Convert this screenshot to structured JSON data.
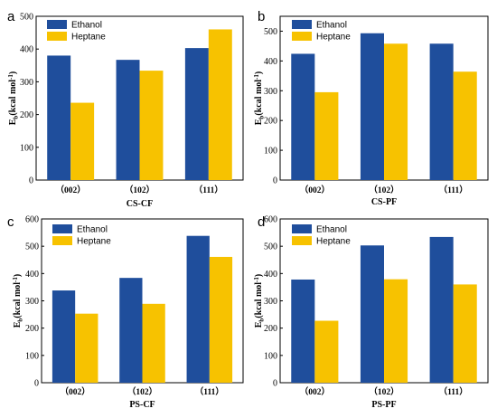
{
  "colors": {
    "ethanol": "#1f4e9c",
    "heptane": "#f7c200"
  },
  "chart_data": [
    {
      "type": "bar",
      "panel_letter": "a",
      "xlabel": "CS-CF",
      "ylabel": "Eb(kcal mol-1)",
      "ylabel_main": "E",
      "ylabel_sub": "b",
      "ylabel_rest": "(kcal mol",
      "ylabel_sup": "-1",
      "ylabel_close": ")",
      "ylim": [
        0,
        500
      ],
      "yticks": [
        "0",
        "100",
        "200",
        "300",
        "400",
        "500"
      ],
      "categories": [
        "（002）",
        "（102）",
        "（111）"
      ],
      "series": [
        {
          "name": "Ethanol",
          "values": [
            380,
            367,
            403
          ]
        },
        {
          "name": "Heptane",
          "values": [
            236,
            334,
            460
          ]
        }
      ],
      "legend": "top-left"
    },
    {
      "type": "bar",
      "panel_letter": "b",
      "xlabel": "CS-PF",
      "ylabel": "Eb(kcal mol-1)",
      "ylabel_main": "E",
      "ylabel_sub": "b",
      "ylabel_rest": "(kcal mol",
      "ylabel_sup": "-1",
      "ylabel_close": ")",
      "ylim": [
        0,
        550
      ],
      "yticks": [
        "0",
        "100",
        "200",
        "300",
        "400",
        "500"
      ],
      "categories": [
        "（002）",
        "（102）",
        "（111）"
      ],
      "series": [
        {
          "name": "Ethanol",
          "values": [
            424,
            493,
            458
          ]
        },
        {
          "name": "Heptane",
          "values": [
            295,
            458,
            364
          ]
        }
      ],
      "legend": "top-left"
    },
    {
      "type": "bar",
      "panel_letter": "c",
      "xlabel": "PS-CF",
      "ylabel": "Eb(kcal mol-1)",
      "ylabel_main": "E",
      "ylabel_sub": "b",
      "ylabel_rest": "(kcal mol",
      "ylabel_sup": "-1",
      "ylabel_close": ")",
      "ylim": [
        0,
        600
      ],
      "yticks": [
        "0",
        "100",
        "200",
        "300",
        "400",
        "500",
        "600"
      ],
      "categories": [
        "（002）",
        "（102）",
        "（111）"
      ],
      "series": [
        {
          "name": "Ethanol",
          "values": [
            338,
            384,
            538
          ]
        },
        {
          "name": "Heptane",
          "values": [
            253,
            289,
            461
          ]
        }
      ],
      "legend": "top-left"
    },
    {
      "type": "bar",
      "panel_letter": "d",
      "xlabel": "PS-PF",
      "ylabel": "Eb(kcal mol-1)",
      "ylabel_main": "E",
      "ylabel_sub": "b",
      "ylabel_rest": "(kcal mol",
      "ylabel_sup": "-1",
      "ylabel_close": ")",
      "ylim": [
        0,
        600
      ],
      "yticks": [
        "0",
        "100",
        "200",
        "300",
        "400",
        "500",
        "600"
      ],
      "categories": [
        "（002）",
        "（102）",
        "（111）"
      ],
      "series": [
        {
          "name": "Ethanol",
          "values": [
            378,
            503,
            534
          ]
        },
        {
          "name": "Heptane",
          "values": [
            227,
            379,
            360
          ]
        }
      ],
      "legend": "top-left"
    }
  ]
}
